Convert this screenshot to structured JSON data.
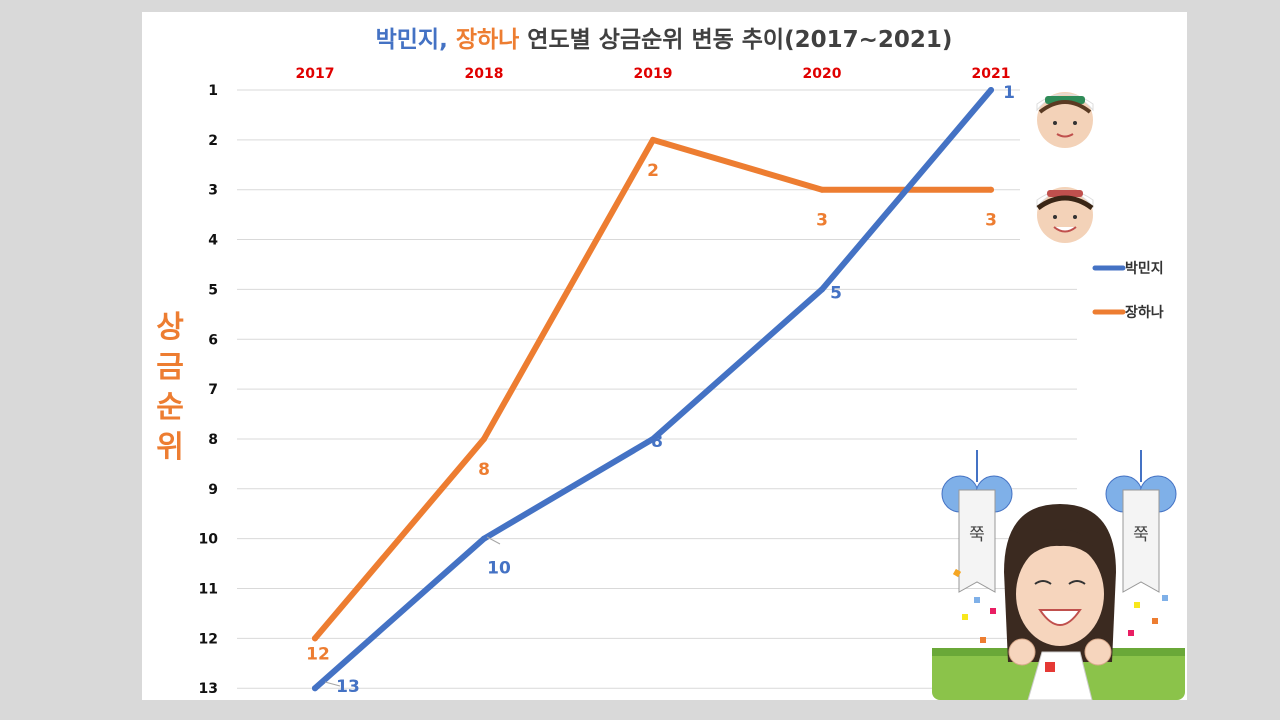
{
  "chart_data": {
    "type": "line",
    "title_parts": [
      {
        "text": "박민지",
        "color": "#4472c4"
      },
      {
        "text": ", ",
        "color": "#4472c4"
      },
      {
        "text": "장하나",
        "color": "#ed7d31"
      },
      {
        "text": " 연도별 상금순위 변동 추이(2017~2021)",
        "color": "#404040"
      }
    ],
    "categories": [
      "2017",
      "2018",
      "2019",
      "2020",
      "2021"
    ],
    "ylabel": [
      "상",
      "금",
      "순",
      "위"
    ],
    "yticks": [
      "1",
      "2",
      "3",
      "4",
      "5",
      "6",
      "7",
      "8",
      "9",
      "10",
      "11",
      "12",
      "13"
    ],
    "ylim": [
      1,
      13
    ],
    "y_inverted": true,
    "grid": true,
    "legend_position": "right",
    "series": [
      {
        "name": "박민지",
        "color": "#4472c4",
        "values": [
          13,
          10,
          8,
          5,
          1
        ],
        "labels": [
          "13",
          "10",
          "8",
          "5",
          "1"
        ]
      },
      {
        "name": "장하나",
        "color": "#ed7d31",
        "values": [
          12,
          8,
          2,
          3,
          3
        ],
        "labels": [
          "12",
          "8",
          "2",
          "3",
          "3"
        ]
      }
    ],
    "banner_text": [
      "쭉",
      "쭉"
    ]
  }
}
